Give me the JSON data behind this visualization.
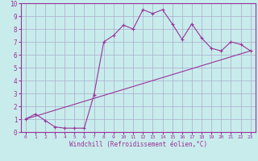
{
  "title": "",
  "xlabel": "Windchill (Refroidissement éolien,°C)",
  "ylabel": "",
  "bg_color": "#c8ecec",
  "line_color": "#993399",
  "grid_color": "#aaaacc",
  "spine_color": "#993399",
  "xlim": [
    -0.5,
    23.5
  ],
  "ylim": [
    0,
    10
  ],
  "xticks": [
    0,
    1,
    2,
    3,
    4,
    5,
    6,
    7,
    8,
    9,
    10,
    11,
    12,
    13,
    14,
    15,
    16,
    17,
    18,
    19,
    20,
    21,
    22,
    23
  ],
  "yticks": [
    0,
    1,
    2,
    3,
    4,
    5,
    6,
    7,
    8,
    9,
    10
  ],
  "curve_x": [
    0,
    1,
    2,
    3,
    4,
    5,
    6,
    7,
    8,
    9,
    10,
    11,
    12,
    13,
    14,
    15,
    16,
    17,
    18,
    19,
    20,
    21,
    22,
    23
  ],
  "curve_y": [
    1.0,
    1.4,
    0.9,
    0.4,
    0.3,
    0.3,
    0.3,
    2.9,
    7.0,
    7.5,
    8.3,
    8.0,
    9.5,
    9.2,
    9.5,
    8.4,
    7.2,
    8.4,
    7.3,
    6.5,
    6.3,
    7.0,
    6.8,
    6.3
  ],
  "line2_x": [
    0,
    23
  ],
  "line2_y": [
    1.0,
    6.3
  ],
  "xlabel_fontsize": 5.5,
  "tick_fontsize_x": 4.5,
  "tick_fontsize_y": 5.5
}
